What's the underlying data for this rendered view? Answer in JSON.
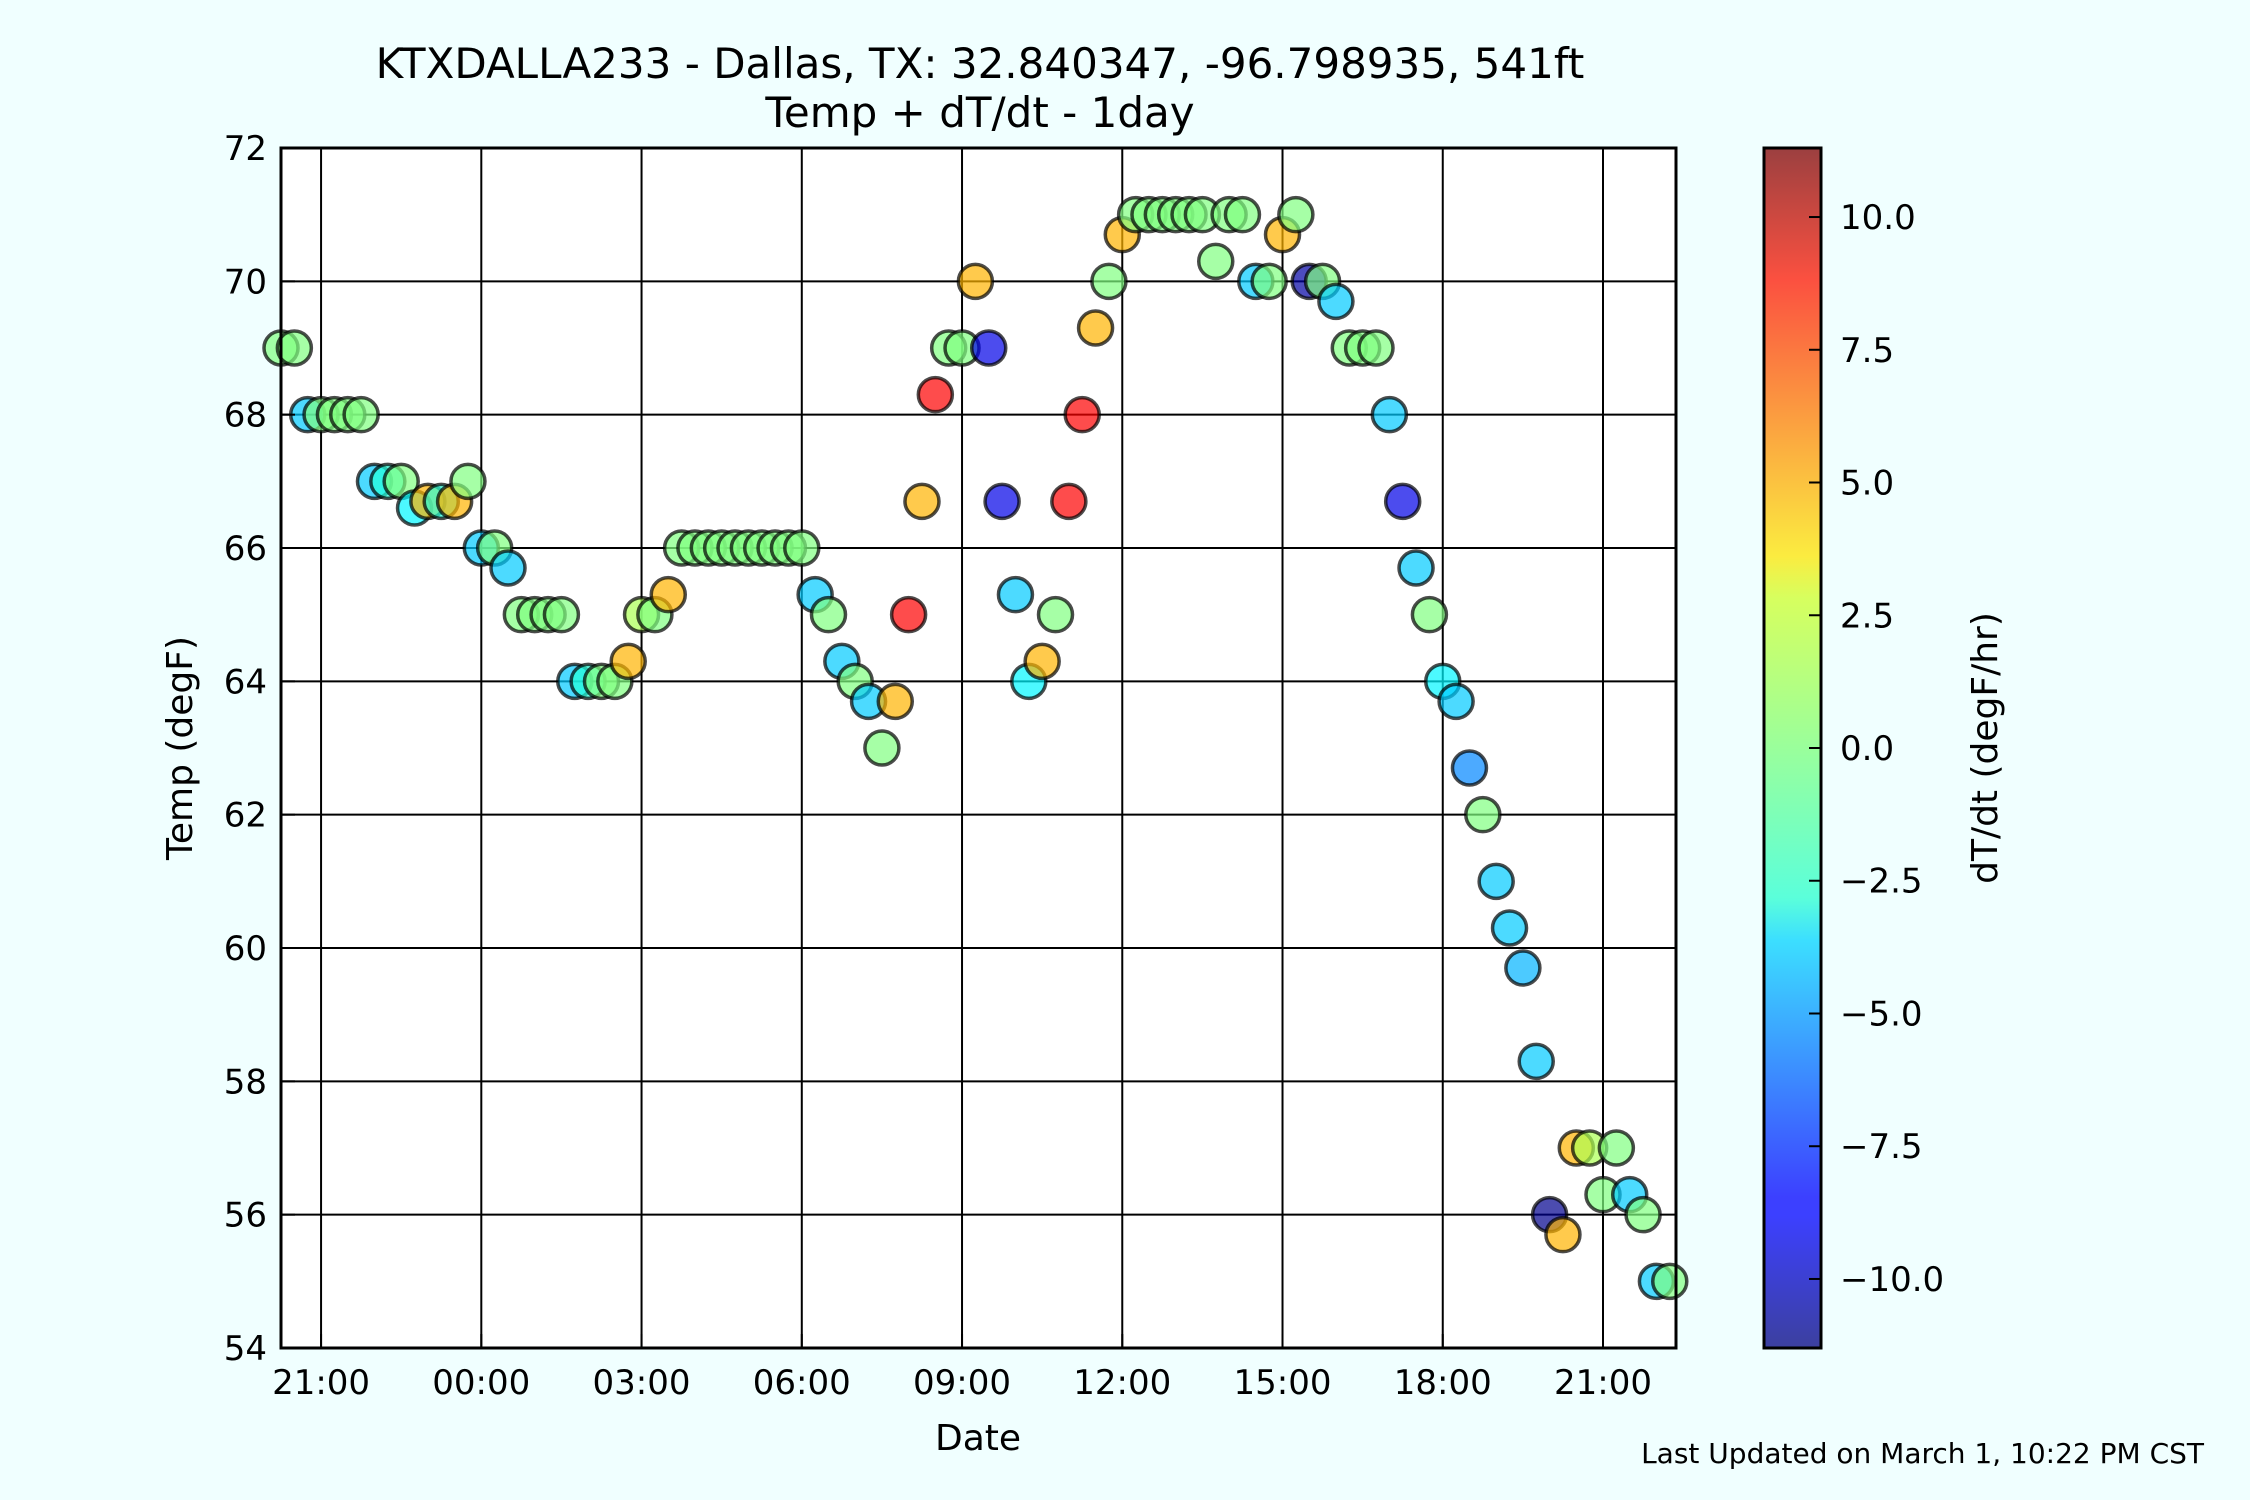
{
  "chart_data": {
    "type": "scatter",
    "title": "KTXDALLA233 - Dallas, TX: 32.840347, -96.798935, 541ft",
    "subtitle": "Temp + dT/dt - 1day",
    "xlabel": "Date",
    "ylabel": "Temp (degF)",
    "colorbar_label": "dT/dt (degF/hr)",
    "footer": "Last Updated on March 1, 10:22 PM CST",
    "x_ticks": [
      "21:00",
      "00:00",
      "03:00",
      "06:00",
      "09:00",
      "12:00",
      "15:00",
      "18:00",
      "21:00"
    ],
    "y_ticks": [
      "54",
      "56",
      "58",
      "60",
      "62",
      "64",
      "66",
      "68",
      "70",
      "72"
    ],
    "colorbar_ticks": [
      "10.0",
      "7.5",
      "5.0",
      "2.5",
      "0.0",
      "−2.5",
      "−5.0",
      "−7.5",
      "−10.0"
    ],
    "xlim": [
      "2/28 20:15",
      "3/1 22:22"
    ],
    "ylim": [
      54,
      72
    ],
    "clim": [
      -11.3,
      11.3
    ],
    "grid": true,
    "colormap": "jet",
    "marker_alpha": 0.7,
    "points": [
      {
        "x": "2/28 20:15",
        "y": 69,
        "c": 0
      },
      {
        "x": "2/28 20:30",
        "y": 69,
        "c": 0
      },
      {
        "x": "2/28 20:45",
        "y": 68,
        "c": -4
      },
      {
        "x": "2/28 21:00",
        "y": 68,
        "c": 0
      },
      {
        "x": "2/28 21:15",
        "y": 68,
        "c": 0
      },
      {
        "x": "2/28 21:30",
        "y": 68,
        "c": 0
      },
      {
        "x": "2/28 21:45",
        "y": 68,
        "c": 0
      },
      {
        "x": "2/28 22:00",
        "y": 67,
        "c": -4
      },
      {
        "x": "2/28 22:15",
        "y": 67,
        "c": -2
      },
      {
        "x": "2/28 22:30",
        "y": 67,
        "c": 0
      },
      {
        "x": "2/28 22:45",
        "y": 66.6,
        "c": -3
      },
      {
        "x": "2/28 23:00",
        "y": 66.7,
        "c": 4.5
      },
      {
        "x": "2/28 23:15",
        "y": 66.7,
        "c": -2
      },
      {
        "x": "2/28 23:30",
        "y": 66.7,
        "c": 4.5
      },
      {
        "x": "2/28 23:45",
        "y": 67,
        "c": 0
      },
      {
        "x": "3/1 00:00",
        "y": 66,
        "c": -4
      },
      {
        "x": "3/1 00:15",
        "y": 66,
        "c": 0
      },
      {
        "x": "3/1 00:30",
        "y": 65.7,
        "c": -4
      },
      {
        "x": "3/1 00:45",
        "y": 65,
        "c": 0
      },
      {
        "x": "3/1 01:00",
        "y": 65,
        "c": 0
      },
      {
        "x": "3/1 01:15",
        "y": 65,
        "c": 0
      },
      {
        "x": "3/1 01:30",
        "y": 65,
        "c": 0
      },
      {
        "x": "3/1 01:45",
        "y": 64,
        "c": -4
      },
      {
        "x": "3/1 02:00",
        "y": 64,
        "c": -2
      },
      {
        "x": "3/1 02:15",
        "y": 64,
        "c": 0
      },
      {
        "x": "3/1 02:30",
        "y": 64,
        "c": 0
      },
      {
        "x": "3/1 02:45",
        "y": 64.3,
        "c": 4.5
      },
      {
        "x": "3/1 03:00",
        "y": 65,
        "c": 1
      },
      {
        "x": "3/1 03:15",
        "y": 65,
        "c": 0
      },
      {
        "x": "3/1 03:30",
        "y": 65.3,
        "c": 4.5
      },
      {
        "x": "3/1 03:45",
        "y": 66,
        "c": 0
      },
      {
        "x": "3/1 04:00",
        "y": 66,
        "c": 0
      },
      {
        "x": "3/1 04:15",
        "y": 66,
        "c": 0
      },
      {
        "x": "3/1 04:30",
        "y": 66,
        "c": 0
      },
      {
        "x": "3/1 04:45",
        "y": 66,
        "c": 0
      },
      {
        "x": "3/1 05:00",
        "y": 66,
        "c": 0
      },
      {
        "x": "3/1 05:15",
        "y": 66,
        "c": 0
      },
      {
        "x": "3/1 05:30",
        "y": 66,
        "c": 0
      },
      {
        "x": "3/1 05:45",
        "y": 66,
        "c": 0
      },
      {
        "x": "3/1 06:00",
        "y": 66,
        "c": 0
      },
      {
        "x": "3/1 06:15",
        "y": 65.3,
        "c": -4
      },
      {
        "x": "3/1 06:30",
        "y": 65,
        "c": 0
      },
      {
        "x": "3/1 06:45",
        "y": 64.3,
        "c": -4
      },
      {
        "x": "3/1 07:00",
        "y": 64,
        "c": 0
      },
      {
        "x": "3/1 07:15",
        "y": 63.7,
        "c": -4
      },
      {
        "x": "3/1 07:30",
        "y": 63,
        "c": 0
      },
      {
        "x": "3/1 07:45",
        "y": 63.7,
        "c": 4.5
      },
      {
        "x": "3/1 08:00",
        "y": 65,
        "c": 8.5
      },
      {
        "x": "3/1 08:15",
        "y": 66.7,
        "c": 4.5
      },
      {
        "x": "3/1 08:30",
        "y": 68.3,
        "c": 8.5
      },
      {
        "x": "3/1 08:45",
        "y": 69,
        "c": 0
      },
      {
        "x": "3/1 09:00",
        "y": 69,
        "c": 0
      },
      {
        "x": "3/1 09:15",
        "y": 70,
        "c": 4.5
      },
      {
        "x": "3/1 09:30",
        "y": 69,
        "c": -9
      },
      {
        "x": "3/1 09:45",
        "y": 66.7,
        "c": -9
      },
      {
        "x": "3/1 10:00",
        "y": 65.3,
        "c": -4
      },
      {
        "x": "3/1 10:15",
        "y": 64,
        "c": -3
      },
      {
        "x": "3/1 10:30",
        "y": 64.3,
        "c": 4.5
      },
      {
        "x": "3/1 10:45",
        "y": 65,
        "c": 0
      },
      {
        "x": "3/1 11:00",
        "y": 66.7,
        "c": 8.5
      },
      {
        "x": "3/1 11:15",
        "y": 68,
        "c": 8.5
      },
      {
        "x": "3/1 11:30",
        "y": 69.3,
        "c": 4.5
      },
      {
        "x": "3/1 11:45",
        "y": 70,
        "c": 0
      },
      {
        "x": "3/1 12:00",
        "y": 70.7,
        "c": 4.5
      },
      {
        "x": "3/1 12:15",
        "y": 71,
        "c": 0
      },
      {
        "x": "3/1 12:30",
        "y": 71,
        "c": 0
      },
      {
        "x": "3/1 12:45",
        "y": 71,
        "c": 0
      },
      {
        "x": "3/1 13:00",
        "y": 71,
        "c": 0
      },
      {
        "x": "3/1 13:15",
        "y": 71,
        "c": 0
      },
      {
        "x": "3/1 13:30",
        "y": 71,
        "c": 0
      },
      {
        "x": "3/1 13:45",
        "y": 70.3,
        "c": 0
      },
      {
        "x": "3/1 14:00",
        "y": 71,
        "c": 0
      },
      {
        "x": "3/1 14:15",
        "y": 71,
        "c": 0
      },
      {
        "x": "3/1 14:30",
        "y": 70,
        "c": -4
      },
      {
        "x": "3/1 14:45",
        "y": 70,
        "c": 0
      },
      {
        "x": "3/1 15:00",
        "y": 70.7,
        "c": 4.5
      },
      {
        "x": "3/1 15:15",
        "y": 71,
        "c": 0
      },
      {
        "x": "3/1 15:30",
        "y": 70,
        "c": -10.5
      },
      {
        "x": "3/1 15:45",
        "y": 70,
        "c": 0
      },
      {
        "x": "3/1 16:00",
        "y": 69.7,
        "c": -4
      },
      {
        "x": "3/1 16:15",
        "y": 69,
        "c": 0
      },
      {
        "x": "3/1 16:30",
        "y": 69,
        "c": 0
      },
      {
        "x": "3/1 16:45",
        "y": 69,
        "c": 0
      },
      {
        "x": "3/1 17:00",
        "y": 68,
        "c": -4
      },
      {
        "x": "3/1 17:15",
        "y": 66.7,
        "c": -9
      },
      {
        "x": "3/1 17:30",
        "y": 65.7,
        "c": -4
      },
      {
        "x": "3/1 17:45",
        "y": 65,
        "c": 0
      },
      {
        "x": "3/1 18:00",
        "y": 64,
        "c": -3
      },
      {
        "x": "3/1 18:15",
        "y": 63.7,
        "c": -4
      },
      {
        "x": "3/1 18:30",
        "y": 62.7,
        "c": -5.5
      },
      {
        "x": "3/1 18:45",
        "y": 62,
        "c": 0
      },
      {
        "x": "3/1 19:00",
        "y": 61,
        "c": -4
      },
      {
        "x": "3/1 19:15",
        "y": 60.3,
        "c": -4
      },
      {
        "x": "3/1 19:30",
        "y": 59.7,
        "c": -4.5
      },
      {
        "x": "3/1 19:45",
        "y": 58.3,
        "c": -4
      },
      {
        "x": "3/1 20:00",
        "y": 56,
        "c": -11
      },
      {
        "x": "3/1 20:15",
        "y": 55.7,
        "c": 4.5
      },
      {
        "x": "3/1 20:30",
        "y": 57,
        "c": 4.5
      },
      {
        "x": "3/1 20:45",
        "y": 57,
        "c": 1
      },
      {
        "x": "3/1 21:00",
        "y": 56.3,
        "c": 0
      },
      {
        "x": "3/1 21:15",
        "y": 57,
        "c": 0
      },
      {
        "x": "3/1 21:30",
        "y": 56.3,
        "c": -4
      },
      {
        "x": "3/1 21:45",
        "y": 56,
        "c": 0
      },
      {
        "x": "3/1 22:00",
        "y": 55,
        "c": -4
      },
      {
        "x": "3/1 22:15",
        "y": 55,
        "c": 0
      }
    ]
  }
}
